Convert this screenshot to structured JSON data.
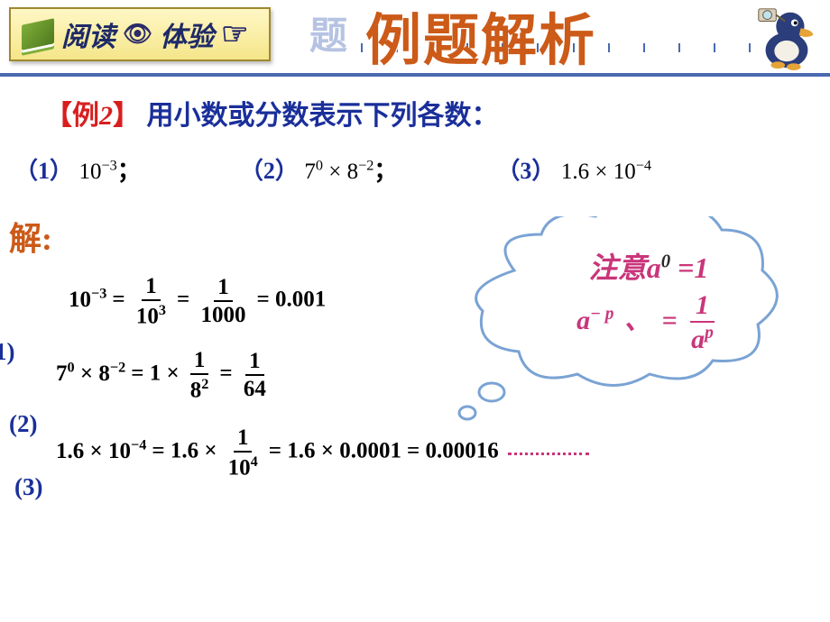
{
  "header": {
    "badge_read": "阅读",
    "badge_exp": "体验",
    "title_shadow": "题",
    "title_main": "例题解析",
    "ruler_color": "#4a6ab0",
    "tick_count": 12
  },
  "example": {
    "bracket_open": "【",
    "label_word": "例",
    "label_num": "2",
    "bracket_close": "】",
    "prompt": "用小数或分数表示下列各数：",
    "items": [
      {
        "n": "（1）",
        "expr_html": "10<sup>−3</sup>",
        "tail": "；"
      },
      {
        "n": "（2）",
        "expr_html": "7<sup>0</sup> × 8<sup>−2</sup>",
        "tail": "；"
      },
      {
        "n": "（3）",
        "expr_html": "1.6 × 10<sup>−4</sup>",
        "tail": ""
      }
    ]
  },
  "solution_label": "解:",
  "solutions": {
    "s1": {
      "lhs": "10<sup>−3</sup>",
      "f1_num": "1",
      "f1_den": "10<sup>3</sup>",
      "f2_num": "1",
      "f2_den": "1000",
      "result": "0.001"
    },
    "s2": {
      "lhs": "7<sup>0</sup> × 8<sup>−2</sup>",
      "mid": "1 ×",
      "f1_num": "1",
      "f1_den": "8<sup>2</sup>",
      "f2_num": "1",
      "f2_den": "64"
    },
    "s3": {
      "lhs": "1.6 × 10<sup>−4</sup>",
      "mid": "1.6 ×",
      "f1_num": "1",
      "f1_den": "10<sup>4</sup>",
      "step2": "1.6 × 0.0001",
      "result": "0.00016"
    }
  },
  "side_labels": {
    "p1": "1)",
    "p2": "(2)",
    "p3": "(3)"
  },
  "cloud": {
    "note_word": "注意",
    "rule1_base": "a",
    "rule1_exp": "0",
    "rule1_eq": " =1",
    "rule2_base": "a",
    "rule2_lexp": "− p",
    "rule2_eq": "=",
    "rule2_num": "1",
    "rule2_den_base": "a",
    "rule2_den_exp": "p",
    "cloud_stroke": "#7aa3d4",
    "cloud_fill": "#ffffff",
    "text_color": "#c9367a"
  },
  "colors": {
    "orange": "#cc5a18",
    "blue": "#1a2f9a",
    "red": "#d81e1e",
    "pink": "#c9367a",
    "badge_bg_top": "#fff7c5",
    "badge_bg_bottom": "#f5e68a"
  }
}
